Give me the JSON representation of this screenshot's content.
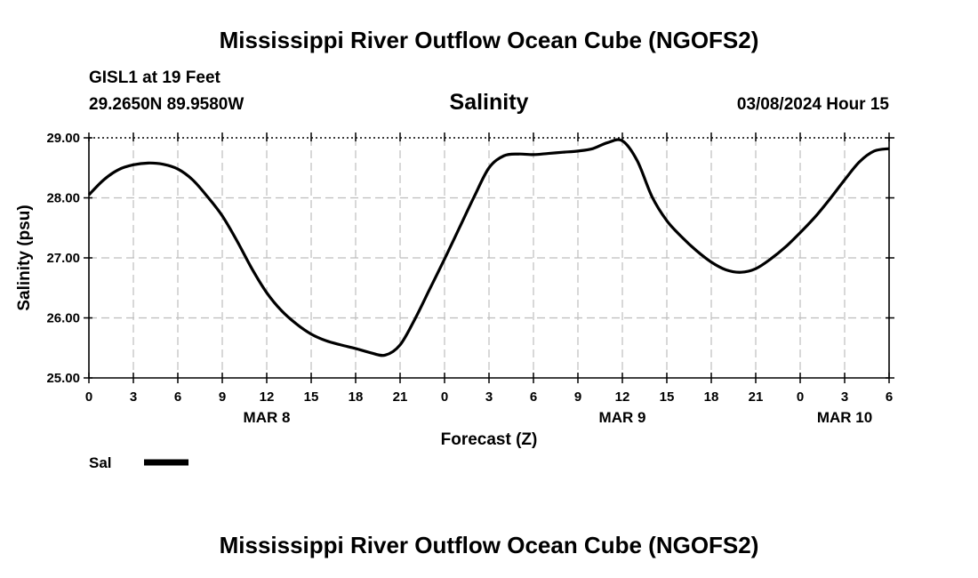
{
  "header": {
    "title": "Mississippi River Outflow Ocean Cube (NGOFS2)",
    "station": "GISL1 at 19 Feet",
    "coords": "29.2650N  89.9580W",
    "datetime": "03/08/2024 Hour 15"
  },
  "footer": {
    "title": "Mississippi River Outflow Ocean Cube (NGOFS2)"
  },
  "chart_data": {
    "type": "line",
    "title": "Salinity",
    "xlabel": "Forecast (Z)",
    "ylabel": "Salinity (psu)",
    "xlim": [
      0,
      54
    ],
    "ylim": [
      25,
      29
    ],
    "grid": true,
    "x_ticks": [
      0,
      3,
      6,
      9,
      12,
      15,
      18,
      21,
      24,
      27,
      30,
      33,
      36,
      39,
      42,
      45,
      48,
      51,
      54
    ],
    "x_tick_labels": [
      "0",
      "3",
      "6",
      "9",
      "12",
      "15",
      "18",
      "21",
      "0",
      "3",
      "6",
      "9",
      "12",
      "15",
      "18",
      "21",
      "0",
      "3",
      "6"
    ],
    "day_labels": [
      {
        "label": "MAR 8",
        "x": 12
      },
      {
        "label": "MAR 9",
        "x": 36
      },
      {
        "label": "MAR 10",
        "x": 51
      }
    ],
    "y_ticks": [
      25,
      26,
      27,
      28,
      29
    ],
    "y_tick_labels": [
      "25.00",
      "26.00",
      "27.00",
      "28.00",
      "29.00"
    ],
    "legend": {
      "position": "bottom-left",
      "label": "Sal"
    },
    "series": [
      {
        "name": "Sal",
        "color": "#000000",
        "x": [
          0,
          1,
          2,
          3,
          4,
          5,
          6,
          7,
          8,
          9,
          10,
          11,
          12,
          13,
          14,
          15,
          16,
          17,
          18,
          19,
          20,
          21,
          22,
          23,
          24,
          25,
          26,
          27,
          28,
          29,
          30,
          31,
          32,
          33,
          34,
          35,
          36,
          37,
          38,
          39,
          40,
          41,
          42,
          43,
          44,
          45,
          46,
          47,
          48,
          49,
          50,
          51,
          52,
          53,
          54
        ],
        "values": [
          28.05,
          28.3,
          28.47,
          28.55,
          28.58,
          28.56,
          28.48,
          28.3,
          28.02,
          27.7,
          27.28,
          26.82,
          26.42,
          26.12,
          25.9,
          25.73,
          25.62,
          25.55,
          25.49,
          25.42,
          25.38,
          25.55,
          25.98,
          26.48,
          26.98,
          27.5,
          28.02,
          28.5,
          28.7,
          28.73,
          28.72,
          28.74,
          28.76,
          28.78,
          28.82,
          28.92,
          28.95,
          28.62,
          28.02,
          27.62,
          27.35,
          27.12,
          26.93,
          26.8,
          26.76,
          26.82,
          26.98,
          27.18,
          27.42,
          27.68,
          27.98,
          28.3,
          28.6,
          28.78,
          28.82
        ]
      }
    ]
  }
}
